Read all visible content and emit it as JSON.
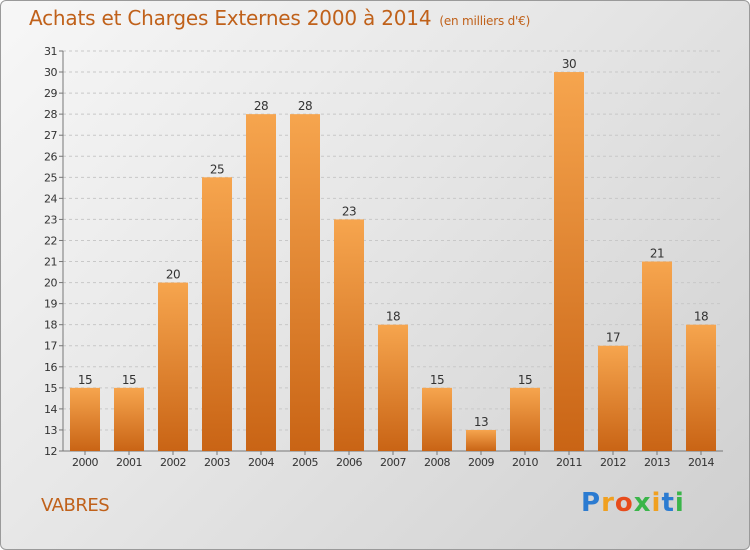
{
  "title": "Achats et Charges Externes 2000 à 2014",
  "subtitle": "(en milliers d'€)",
  "commune": "VABRES",
  "logo": {
    "letters": [
      "P",
      "r",
      "o",
      "x",
      "i",
      "t",
      "i"
    ],
    "colors": [
      "#2b7bd1",
      "#f0a020",
      "#e74c1c",
      "#3ab54a",
      "#f0a020",
      "#2b7bd1",
      "#3ab54a"
    ]
  },
  "colors": {
    "bar_top": "#f6a54e",
    "bar_bottom": "#c96415",
    "title": "#c0611a",
    "grid": "#c8c8c8",
    "text": "#333333"
  },
  "chart_data": {
    "type": "bar",
    "categories": [
      "2000",
      "2001",
      "2002",
      "2003",
      "2004",
      "2005",
      "2006",
      "2007",
      "2008",
      "2009",
      "2010",
      "2011",
      "2012",
      "2013",
      "2014"
    ],
    "values": [
      15,
      15,
      20,
      25,
      28,
      28,
      23,
      18,
      15,
      13,
      15,
      30,
      17,
      21,
      18
    ],
    "ylim": [
      12,
      31
    ],
    "yticks": [
      12,
      13,
      14,
      15,
      16,
      17,
      18,
      19,
      20,
      21,
      22,
      23,
      24,
      25,
      26,
      27,
      28,
      29,
      30,
      31
    ],
    "grid": true,
    "legend": "none"
  }
}
